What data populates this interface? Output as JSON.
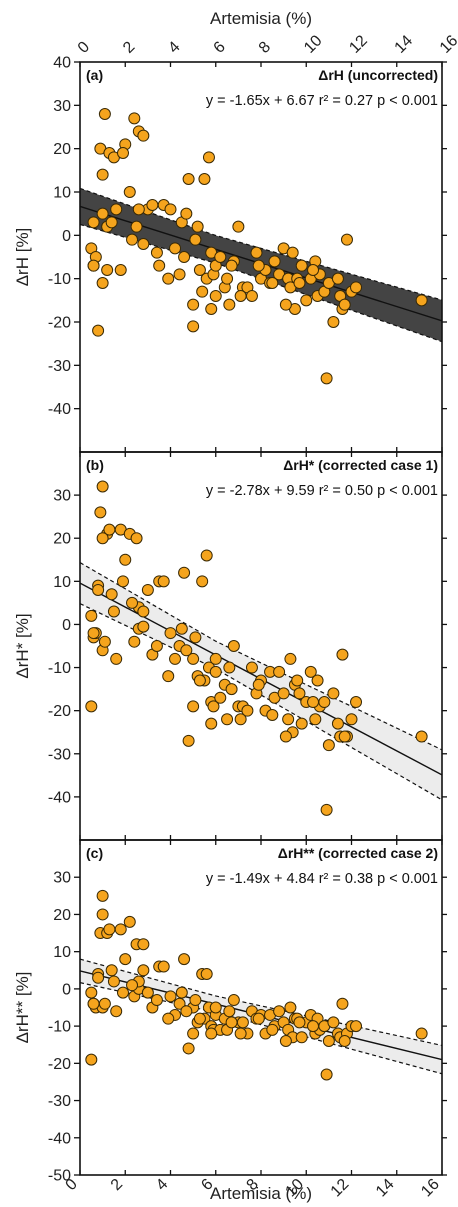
{
  "colors": {
    "point_fill": "#f5a41d",
    "point_stroke": "#3a2a05",
    "band_dark": "#444444",
    "band_light": "#ececec"
  },
  "chart_data": [
    {
      "type": "scatter",
      "tag": "(a)",
      "title": "ΔrH (uncorrected)",
      "stats": "y = -1.65x + 6.67  r² = 0.27  p < 0.001",
      "ylabel": "ΔrH [%]",
      "xlabel_top": "Artemisia (%)",
      "xlim": [
        0,
        16
      ],
      "ylim": [
        -50,
        40
      ],
      "yticks": [
        "-40",
        "-30",
        "-20",
        "-10",
        "0",
        "10",
        "20",
        "30",
        "40"
      ],
      "xticks_top": [
        "0",
        "2",
        "4",
        "6",
        "8",
        "10",
        "12",
        "14",
        "16"
      ],
      "fit": {
        "slope": -1.65,
        "intercept": 6.67
      },
      "band_style": "dark",
      "band_half_width": [
        3.2,
        4.8
      ],
      "x": [
        0.5,
        0.6,
        0.7,
        0.9,
        1.0,
        1.0,
        1.1,
        1.2,
        1.3,
        1.5,
        1.6,
        1.8,
        2.0,
        2.2,
        2.4,
        2.5,
        2.6,
        2.8,
        3.0,
        3.2,
        3.5,
        3.7,
        4.0,
        4.2,
        4.4,
        4.6,
        4.8,
        5.0,
        5.0,
        5.2,
        5.4,
        5.5,
        5.6,
        5.7,
        5.8,
        5.9,
        6.0,
        6.0,
        6.2,
        6.4,
        6.5,
        6.6,
        6.8,
        7.0,
        7.2,
        7.4,
        7.6,
        7.8,
        8.0,
        8.2,
        8.4,
        8.6,
        8.8,
        9.0,
        9.2,
        9.3,
        9.4,
        9.5,
        9.6,
        9.8,
        10.0,
        10.2,
        10.4,
        10.5,
        10.6,
        10.8,
        11.0,
        11.2,
        11.4,
        11.5,
        11.6,
        11.8,
        12.0,
        12.2,
        0.6,
        0.8,
        1.2,
        1.4,
        1.9,
        2.6,
        3.4,
        3.9,
        4.5,
        5.1,
        5.3,
        5.8,
        6.7,
        7.1,
        7.9,
        8.5,
        9.1,
        9.7,
        10.3,
        11.7,
        15.1,
        10.9,
        0.6,
        2.8,
        1.0,
        2.3,
        4.7
      ],
      "y": [
        -3.0,
        -7.0,
        -5.0,
        20.0,
        14.0,
        -11.0,
        28.0,
        2.0,
        19.0,
        18.0,
        6.0,
        -8.0,
        21.0,
        10.0,
        27.0,
        2.0,
        24.0,
        -2.0,
        6.0,
        7.0,
        -7.0,
        7.0,
        6.0,
        -3.0,
        -9.0,
        -5.0,
        13.0,
        -21.0,
        -16.0,
        2.0,
        -13.0,
        13.0,
        -10.0,
        18.0,
        -4.0,
        -9.0,
        -14.0,
        -7.0,
        -5.0,
        -12.0,
        -10.0,
        -16.0,
        -6.0,
        2.0,
        -12.0,
        -12.0,
        -14.0,
        -4.0,
        -10.0,
        -8.0,
        -11.0,
        -6.0,
        -9.0,
        -3.0,
        -10.0,
        -12.0,
        -4.0,
        -17.0,
        -10.0,
        -7.0,
        -15.0,
        -10.0,
        -6.0,
        -14.0,
        -9.0,
        -13.0,
        -11.0,
        -20.0,
        -10.0,
        -14.0,
        -17.0,
        -1.0,
        -13.0,
        -12.0,
        3.0,
        -22.0,
        -8.0,
        3.0,
        19.0,
        6.0,
        -4.0,
        -10.0,
        3.0,
        -1.0,
        -8.0,
        -17.0,
        -7.0,
        -14.0,
        -7.0,
        -11.0,
        -16.0,
        -11.0,
        -8.0,
        -16.0,
        -15.0,
        -33.0,
        -7.0,
        23.0,
        5.0,
        -1.0,
        5.0
      ]
    },
    {
      "type": "scatter",
      "tag": "(b)",
      "title": "ΔrH* (corrected case 1)",
      "stats": "y = -2.78x + 9.59  r² = 0.50  p < 0.001",
      "ylabel": "ΔrH* [%]",
      "xlim": [
        0,
        16
      ],
      "ylim": [
        -50,
        40
      ],
      "yticks": [
        "-40",
        "-30",
        "-20",
        "-10",
        "0",
        "10",
        "20",
        "30"
      ],
      "fit": {
        "slope": -2.78,
        "intercept": 9.59
      },
      "band_style": "light",
      "band_half_width": [
        3.2,
        5.8
      ],
      "x": [
        0.5,
        0.6,
        0.7,
        0.8,
        0.9,
        1.0,
        1.0,
        1.1,
        1.2,
        1.3,
        1.5,
        1.6,
        1.8,
        2.0,
        2.2,
        2.4,
        2.5,
        2.6,
        2.8,
        3.0,
        3.2,
        3.5,
        3.7,
        4.0,
        4.2,
        4.4,
        4.6,
        4.8,
        5.0,
        5.0,
        5.2,
        5.4,
        5.5,
        5.6,
        5.7,
        5.8,
        5.9,
        6.0,
        6.0,
        6.2,
        6.4,
        6.5,
        6.6,
        6.8,
        7.0,
        7.2,
        7.4,
        7.6,
        7.8,
        8.0,
        8.2,
        8.4,
        8.6,
        8.8,
        9.0,
        9.2,
        9.3,
        9.4,
        9.5,
        9.6,
        9.8,
        10.0,
        10.2,
        10.4,
        10.5,
        10.6,
        10.8,
        11.0,
        11.2,
        11.4,
        11.5,
        11.6,
        11.8,
        12.0,
        0.6,
        0.8,
        1.4,
        1.9,
        2.6,
        3.4,
        3.9,
        4.5,
        5.1,
        5.3,
        5.8,
        6.7,
        7.1,
        7.9,
        8.5,
        9.1,
        9.7,
        10.3,
        11.7,
        15.1,
        10.9,
        0.5,
        1.0,
        2.8,
        2.3,
        4.7,
        12.2
      ],
      "y": [
        2.0,
        -3.0,
        -2.0,
        9.0,
        26.0,
        -6.0,
        32.0,
        -4.0,
        21.0,
        22.0,
        3.0,
        -8.0,
        22.0,
        15.0,
        21.0,
        -4.0,
        20.0,
        -1.0,
        -0.5,
        8.0,
        -7.0,
        10.0,
        10.0,
        -2.0,
        -8.0,
        -5.0,
        12.0,
        -27.0,
        -19.0,
        -8.0,
        -12.0,
        10.0,
        -13.0,
        16.0,
        -10.0,
        -18.0,
        -19.0,
        -11.0,
        -8.0,
        -17.0,
        -14.0,
        -22.0,
        -10.0,
        -5.0,
        -19.0,
        -19.0,
        -20.0,
        -10.0,
        -16.0,
        -13.0,
        -20.0,
        -11.0,
        -17.0,
        -11.0,
        -16.0,
        -22.0,
        -8.0,
        -25.0,
        -14.0,
        -13.0,
        -23.0,
        -18.0,
        -11.0,
        -22.0,
        -13.0,
        -19.0,
        -18.0,
        -28.0,
        -16.0,
        -23.0,
        -26.0,
        -7.0,
        -26.0,
        -22.0,
        -2.0,
        8.0,
        7.0,
        10.0,
        4.0,
        -5.0,
        -12.0,
        -1.0,
        -3.0,
        -13.0,
        -23.0,
        -15.0,
        -22.0,
        -14.0,
        -21.0,
        -26.0,
        -16.0,
        -18.0,
        -26.0,
        -26.0,
        -43.0,
        -19.0,
        20.0,
        3.0,
        5.0,
        -6.0,
        -18.0
      ]
    },
    {
      "type": "scatter",
      "tag": "(c)",
      "title": "ΔrH** (corrected case 2)",
      "stats": "y = -1.49x + 4.84  r² = 0.38  p < 0.001",
      "ylabel": "ΔrH** [%]",
      "xlabel": "Artemisia (%)",
      "xlim": [
        0,
        16
      ],
      "ylim": [
        -50,
        40
      ],
      "yticks": [
        "-50",
        "-40",
        "-30",
        "-20",
        "-10",
        "0",
        "10",
        "20",
        "30"
      ],
      "xticks": [
        "0",
        "2",
        "4",
        "6",
        "8",
        "10",
        "12",
        "14",
        "16"
      ],
      "fit": {
        "slope": -1.49,
        "intercept": 4.84
      },
      "band_style": "light",
      "band_half_width": [
        2.2,
        3.8
      ],
      "x": [
        0.5,
        0.6,
        0.7,
        0.8,
        0.9,
        1.0,
        1.0,
        1.1,
        1.2,
        1.3,
        1.5,
        1.6,
        1.8,
        2.0,
        2.2,
        2.4,
        2.5,
        2.6,
        2.8,
        3.0,
        3.2,
        3.5,
        3.7,
        4.0,
        4.2,
        4.4,
        4.6,
        4.8,
        5.0,
        5.0,
        5.2,
        5.4,
        5.5,
        5.6,
        5.7,
        5.8,
        5.9,
        6.0,
        6.0,
        6.2,
        6.4,
        6.5,
        6.6,
        6.8,
        7.0,
        7.2,
        7.4,
        7.6,
        7.8,
        8.0,
        8.2,
        8.4,
        8.6,
        8.8,
        9.0,
        9.2,
        9.3,
        9.4,
        9.5,
        9.6,
        9.8,
        10.0,
        10.2,
        10.4,
        10.5,
        10.6,
        10.8,
        11.0,
        11.2,
        11.4,
        11.5,
        11.6,
        11.8,
        12.0,
        0.6,
        0.8,
        1.4,
        1.9,
        2.6,
        3.4,
        3.9,
        4.5,
        5.1,
        5.3,
        5.8,
        6.7,
        7.1,
        7.9,
        8.5,
        9.1,
        9.7,
        10.3,
        11.7,
        15.1,
        10.9,
        0.5,
        1.0,
        2.8,
        2.3,
        4.7,
        12.2
      ],
      "y": [
        -1.0,
        -4.0,
        -5.0,
        4.0,
        15.0,
        -5.0,
        20.0,
        -4.0,
        15.0,
        16.0,
        2.0,
        -6.0,
        16.0,
        8.0,
        18.0,
        -2.0,
        12.0,
        0.0,
        5.0,
        -1.0,
        -5.0,
        6.0,
        6.0,
        -2.0,
        -7.0,
        -4.0,
        8.0,
        -16.0,
        -12.0,
        -5.0,
        -9.0,
        4.0,
        -8.0,
        4.0,
        -5.0,
        -10.0,
        -11.0,
        -7.0,
        -5.0,
        -11.0,
        -8.0,
        -11.0,
        -6.0,
        -3.0,
        -9.0,
        -9.0,
        -12.0,
        -6.0,
        -8.0,
        -7.0,
        -12.0,
        -7.0,
        -10.0,
        -6.0,
        -9.0,
        -11.0,
        -5.0,
        -13.0,
        -8.0,
        -8.0,
        -13.0,
        -9.0,
        -7.0,
        -12.0,
        -8.0,
        -11.0,
        -10.0,
        -14.0,
        -9.0,
        -12.0,
        -13.0,
        -4.0,
        -12.0,
        -10.0,
        -4.0,
        3.0,
        5.0,
        -1.0,
        2.0,
        -3.0,
        -8.0,
        -1.0,
        -3.0,
        -8.0,
        -12.0,
        -9.0,
        -12.0,
        -8.0,
        -11.0,
        -14.0,
        -9.0,
        -10.0,
        -14.0,
        -12.0,
        -23.0,
        -19.0,
        25.0,
        12.0,
        1.0,
        -6.0,
        -10.0
      ]
    }
  ]
}
